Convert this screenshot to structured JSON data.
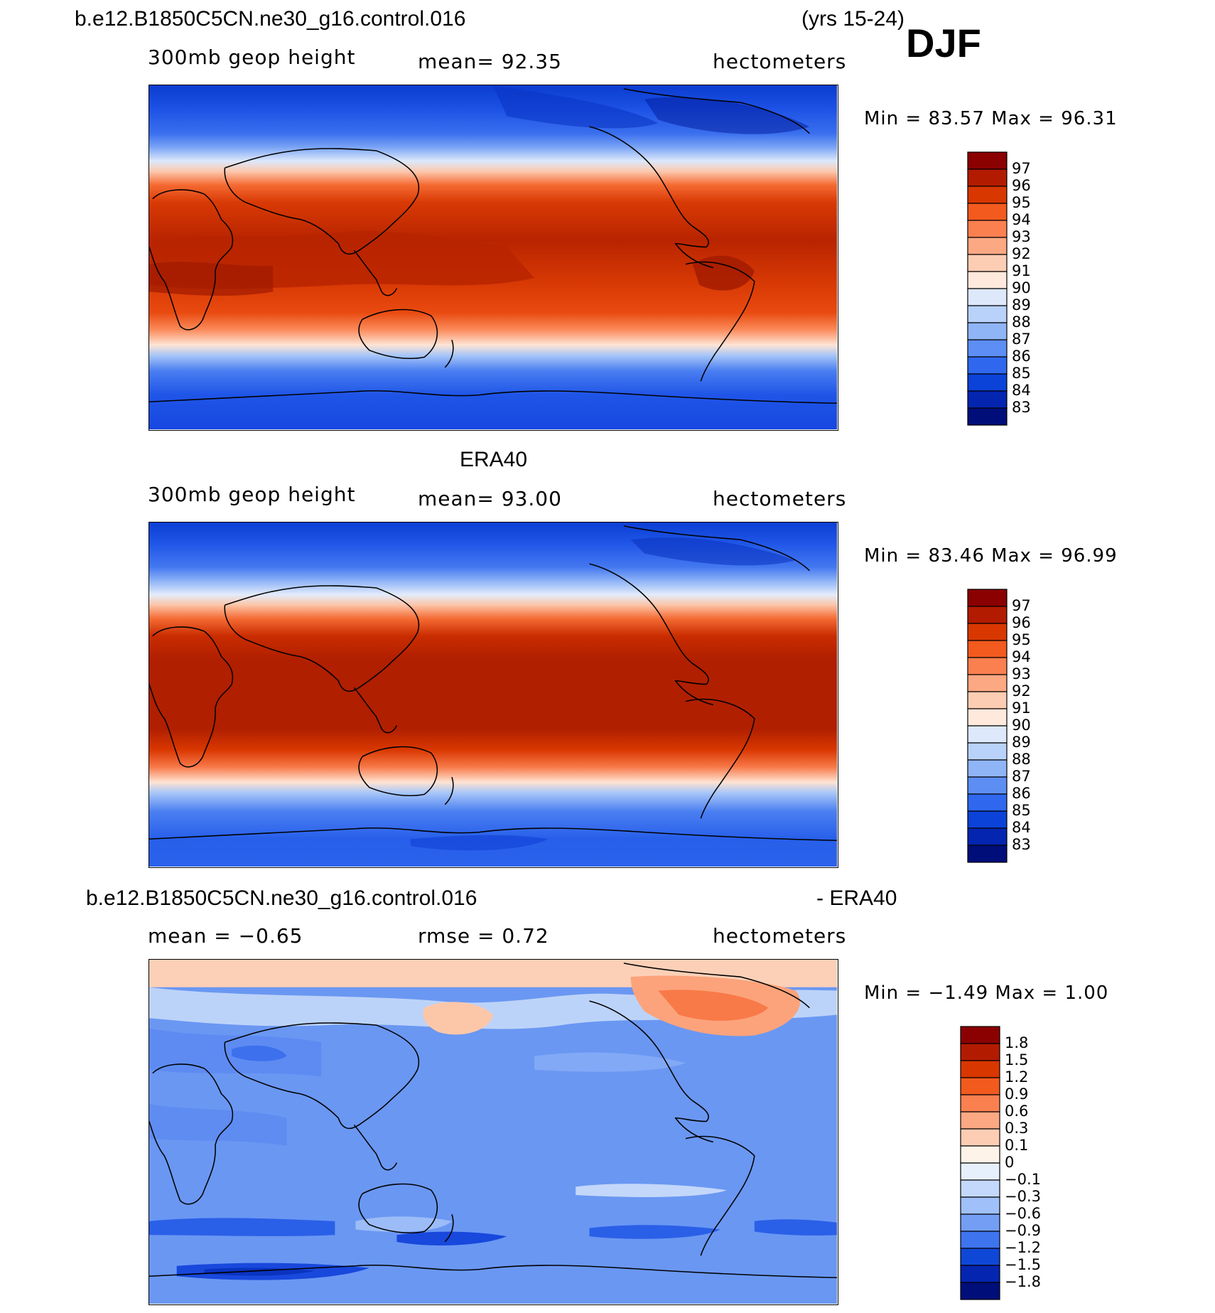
{
  "header": {
    "case_name": "b.e12.B1850C5CN.ne30_g16.control.016",
    "years": "(yrs 15-24)",
    "season": "DJF"
  },
  "panels": [
    {
      "id": "model",
      "title": "",
      "field": "300mb geop height",
      "stat": "mean=   92.35",
      "units": "hectometers",
      "minmax": "Min =   83.57  Max =   96.31",
      "levels": [
        "97",
        "96",
        "95",
        "94",
        "93",
        "92",
        "91",
        "90",
        "89",
        "88",
        "87",
        "86",
        "85",
        "84",
        "83"
      ],
      "colors": [
        "#8b0000",
        "#b31b00",
        "#d93700",
        "#f25a1e",
        "#fb8050",
        "#fca883",
        "#fdcdb3",
        "#fee9dc",
        "#dde9fb",
        "#b8d2fa",
        "#90b5f7",
        "#5d8ef3",
        "#2f68ee",
        "#0b42d8",
        "#0425b0",
        "#000e7a"
      ]
    },
    {
      "id": "obs",
      "title": "ERA40",
      "field": "300mb geop height",
      "stat": "mean=   93.00",
      "units": "hectometers",
      "minmax": "Min =   83.46  Max =   96.99",
      "levels": [
        "97",
        "96",
        "95",
        "94",
        "93",
        "92",
        "91",
        "90",
        "89",
        "88",
        "87",
        "86",
        "85",
        "84",
        "83"
      ],
      "colors": [
        "#8b0000",
        "#b31b00",
        "#d93700",
        "#f25a1e",
        "#fb8050",
        "#fca883",
        "#fdcdb3",
        "#fee9dc",
        "#dde9fb",
        "#b8d2fa",
        "#90b5f7",
        "#5d8ef3",
        "#2f68ee",
        "#0b42d8",
        "#0425b0",
        "#000e7a"
      ]
    },
    {
      "id": "diff",
      "title": "b.e12.B1850C5CN.ne30_g16.control.016",
      "title_right": "- ERA40",
      "field": "mean =   −0.65",
      "stat": "rmse =    0.72",
      "units": "hectometers",
      "minmax": "Min =   −1.49  Max =     1.00",
      "levels": [
        "1.8",
        "1.5",
        "1.2",
        "0.9",
        "0.6",
        "0.3",
        "0.1",
        "0",
        "−0.1",
        "−0.3",
        "−0.6",
        "−0.9",
        "−1.2",
        "−1.5",
        "−1.8"
      ],
      "colors": [
        "#8b0000",
        "#b31b00",
        "#d93700",
        "#f25a1e",
        "#fb8050",
        "#fca883",
        "#fdcdb3",
        "#fef3e8",
        "#e6effc",
        "#c3d8fa",
        "#9fc0f8",
        "#739ef4",
        "#3f74ef",
        "#0f47d6",
        "#0425b0",
        "#000e7a"
      ]
    }
  ]
}
